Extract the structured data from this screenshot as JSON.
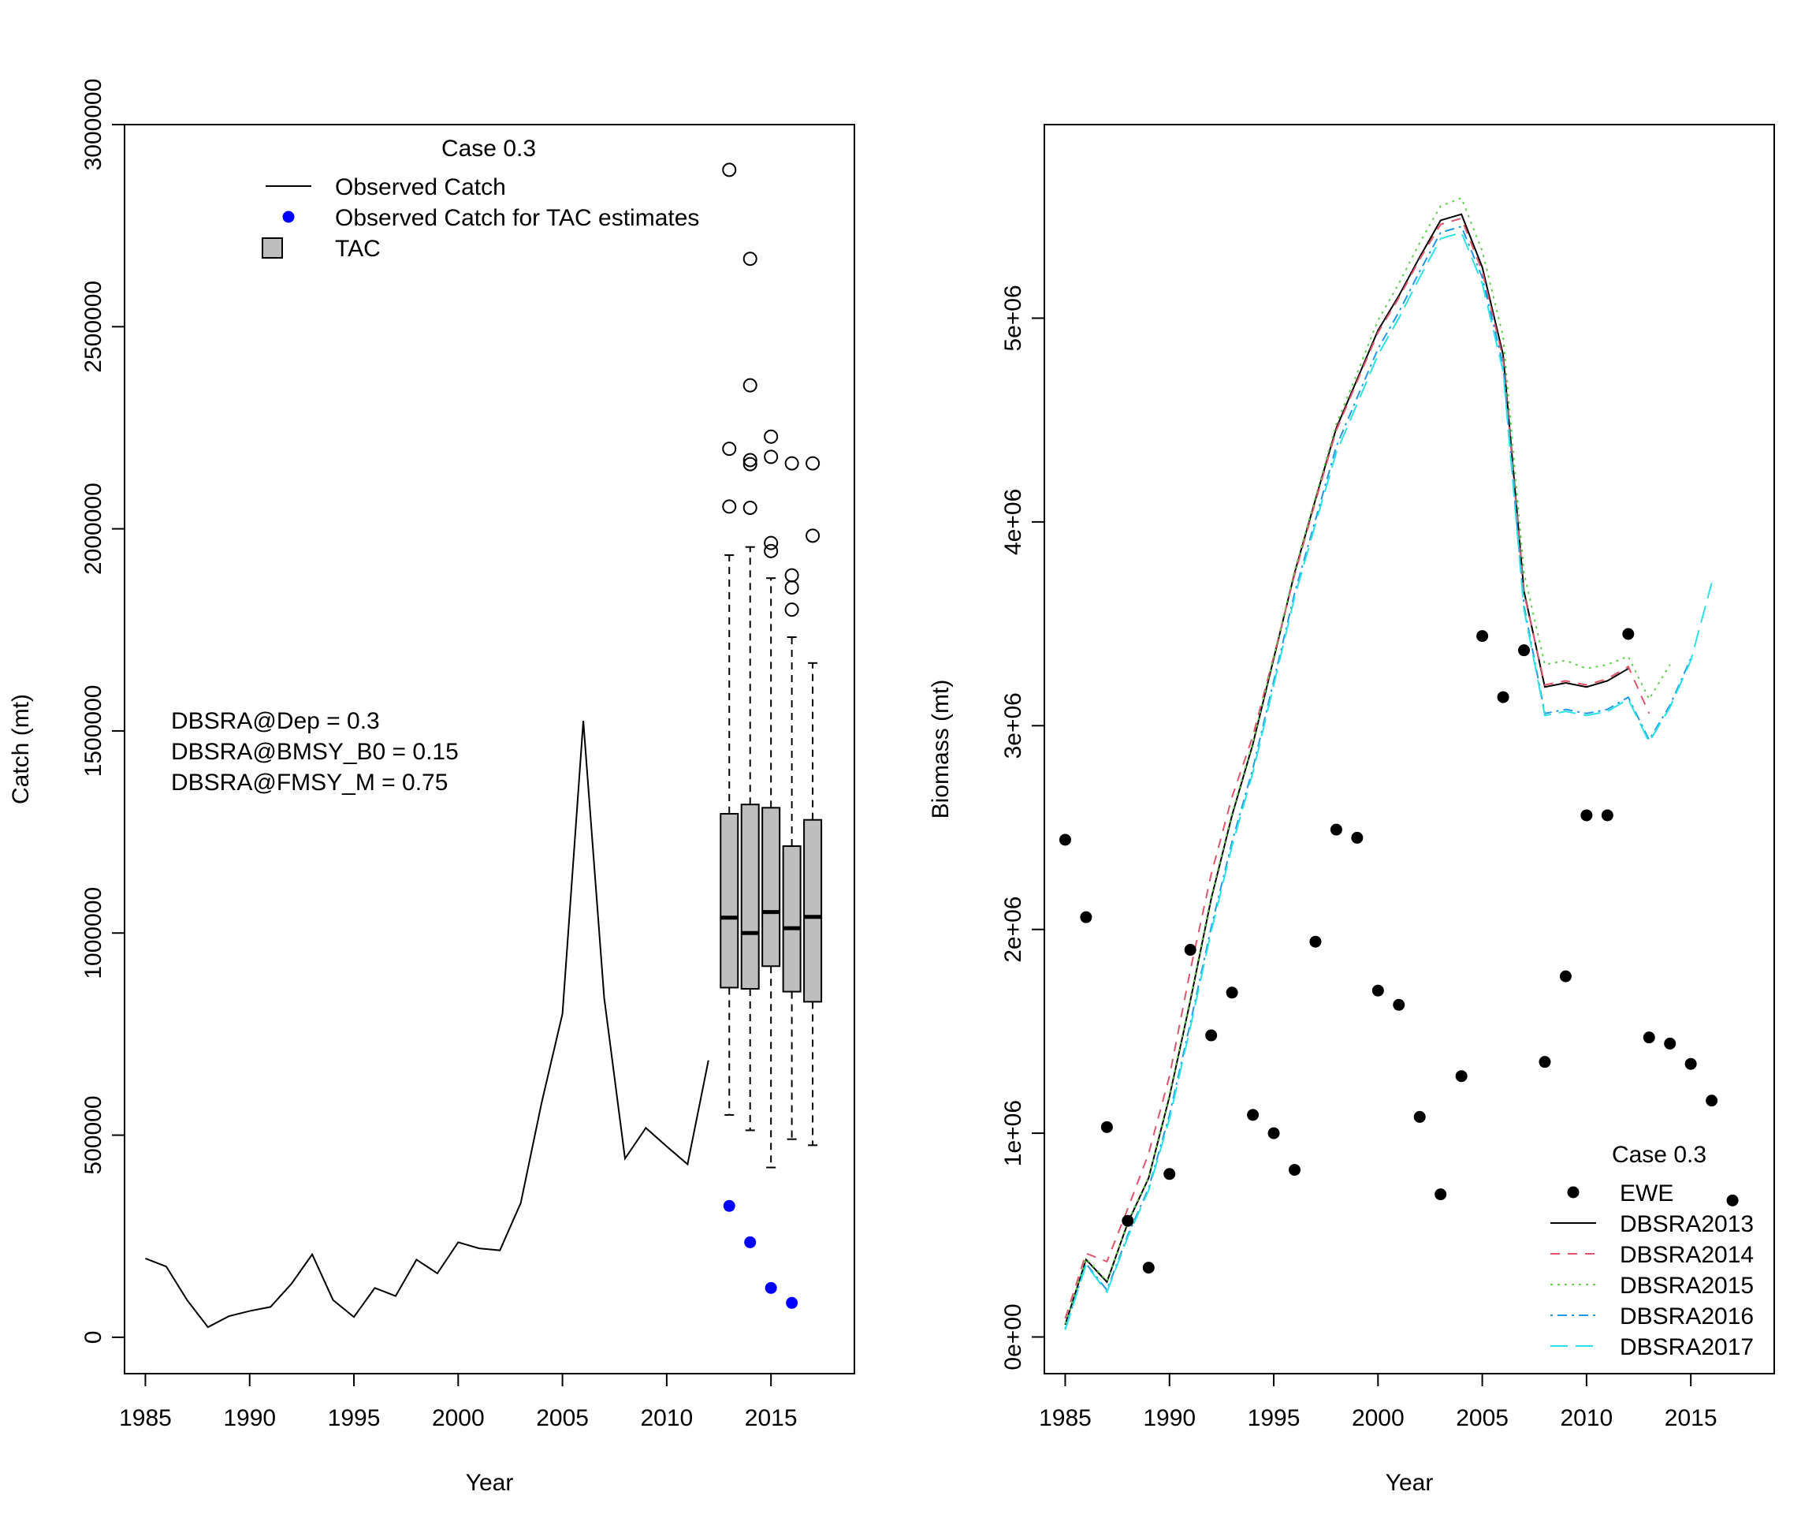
{
  "chart_data": [
    {
      "type": "line+boxplot",
      "xlabel": "Year",
      "ylabel": "Catch (mt)",
      "xlim": [
        1984,
        2019
      ],
      "ylim": [
        -90000,
        3000000
      ],
      "xticks": [
        1985,
        1990,
        1995,
        2000,
        2005,
        2010,
        2015
      ],
      "yticks": [
        0,
        500000,
        1000000,
        1500000,
        2000000,
        2500000,
        3000000
      ],
      "ytick_labels": [
        "0",
        "500000",
        "1000000",
        "1500000",
        "2000000",
        "2500000",
        "3000000"
      ],
      "legend": {
        "title": "Case 0.3",
        "placement": "top",
        "items": [
          {
            "label": "Observed Catch",
            "kind": "line"
          },
          {
            "label": "Observed Catch for TAC estimates",
            "kind": "point",
            "color": "#0000ff"
          },
          {
            "label": "TAC",
            "kind": "box",
            "color": "#bebebe"
          }
        ]
      },
      "annotations": [
        "DBSRA@Dep = 0.3",
        "DBSRA@BMSY_B0 = 0.15",
        "DBSRA@FMSY_M = 0.75"
      ],
      "observed_catch": {
        "x": [
          1985,
          1986,
          1987,
          1988,
          1989,
          1990,
          1991,
          1992,
          1993,
          1994,
          1995,
          1996,
          1997,
          1998,
          1999,
          2000,
          2001,
          2002,
          2003,
          2004,
          2005,
          2006,
          2007,
          2008,
          2009,
          2010,
          2011,
          2012
        ],
        "y": [
          195000,
          175000,
          92000,
          25000,
          52000,
          65000,
          75000,
          132000,
          205000,
          92000,
          50000,
          122000,
          102000,
          192000,
          158000,
          235000,
          220000,
          215000,
          332000,
          580000,
          800000,
          1525000,
          840000,
          442000,
          518000,
          472000,
          428000,
          685000
        ],
        "color": "#000000"
      },
      "tac_catch_points": {
        "x": [
          2013,
          2014,
          2015,
          2016
        ],
        "y": [
          325000,
          235000,
          122000,
          85000
        ],
        "color": "#0000ff"
      },
      "boxes": [
        {
          "x": 2013,
          "q1": 865000,
          "median": 1038000,
          "q3": 1295000,
          "whisker_low": 550000,
          "whisker_high": 1935000,
          "outliers": [
            2055000,
            2198000,
            2888000
          ]
        },
        {
          "x": 2014,
          "q1": 862000,
          "median": 1000000,
          "q3": 1318000,
          "whisker_low": 512000,
          "whisker_high": 1955000,
          "outliers": [
            2052000,
            2160000,
            2170000,
            2355000,
            2668000
          ]
        },
        {
          "x": 2015,
          "q1": 918000,
          "median": 1052000,
          "q3": 1310000,
          "whisker_low": 420000,
          "whisker_high": 1878000,
          "outliers": [
            1945000,
            1965000,
            2178000,
            2228000
          ]
        },
        {
          "x": 2016,
          "q1": 855000,
          "median": 1012000,
          "q3": 1215000,
          "whisker_low": 490000,
          "whisker_high": 1732000,
          "outliers": [
            1800000,
            1855000,
            1885000,
            2162000
          ]
        },
        {
          "x": 2017,
          "q1": 830000,
          "median": 1040000,
          "q3": 1280000,
          "whisker_low": 475000,
          "whisker_high": 1668000,
          "outliers": [
            1983000,
            2162000
          ]
        }
      ],
      "box_color": "#bebebe"
    },
    {
      "type": "line+scatter",
      "xlabel": "Year",
      "ylabel": "Biomass (mt)",
      "xlim": [
        1984,
        2019
      ],
      "ylim": [
        -180000,
        5950000
      ],
      "xticks": [
        1985,
        1990,
        1995,
        2000,
        2005,
        2010,
        2015
      ],
      "yticks": [
        0,
        1000000,
        2000000,
        3000000,
        4000000,
        5000000
      ],
      "ytick_labels": [
        "0e+00",
        "1e+06",
        "2e+06",
        "3e+06",
        "4e+06",
        "5e+06"
      ],
      "legend": {
        "title": "Case 0.3",
        "placement": "bottom-right",
        "items": [
          {
            "label": "EWE",
            "kind": "point",
            "color": "#000000"
          },
          {
            "label": "DBSRA2013",
            "kind": "line",
            "color": "#000000",
            "dash": ""
          },
          {
            "label": "DBSRA2014",
            "kind": "line",
            "color": "#df536b",
            "dash": "12,10"
          },
          {
            "label": "DBSRA2015",
            "kind": "line",
            "color": "#61d04f",
            "dash": "3,6"
          },
          {
            "label": "DBSRA2016",
            "kind": "line",
            "color": "#2297e6",
            "dash": "3,6,12,6"
          },
          {
            "label": "DBSRA2017",
            "kind": "line",
            "color": "#28e2e5",
            "dash": "22,10"
          }
        ]
      },
      "ewe_points": {
        "x": [
          1985,
          1986,
          1987,
          1988,
          1989,
          1990,
          1991,
          1992,
          1993,
          1994,
          1995,
          1996,
          1997,
          1998,
          1999,
          2000,
          2001,
          2002,
          2003,
          2004,
          2005,
          2006,
          2007,
          2008,
          2009,
          2010,
          2011,
          2012,
          2013,
          2014,
          2015,
          2016,
          2017
        ],
        "y": [
          2440000,
          2060000,
          1030000,
          570000,
          340000,
          800000,
          1900000,
          1480000,
          1690000,
          1090000,
          1000000,
          820000,
          1940000,
          2490000,
          2450000,
          1700000,
          1630000,
          1080000,
          700000,
          1280000,
          3440000,
          3140000,
          3370000,
          1350000,
          1770000,
          2560000,
          2560000,
          3450000,
          1470000,
          1440000,
          1340000,
          1160000,
          670000
        ],
        "color": "#000000"
      },
      "series": [
        {
          "name": "DBSRA2013",
          "color": "#000000",
          "dash": "",
          "x": [
            1985,
            1986,
            1987,
            1988,
            1989,
            1990,
            1991,
            1992,
            1993,
            1994,
            1995,
            1996,
            1997,
            1998,
            1999,
            2000,
            2001,
            2002,
            2003,
            2004,
            2005,
            2006,
            2007,
            2008,
            2009,
            2010,
            2011,
            2012
          ],
          "values": [
            60000,
            380000,
            270000,
            560000,
            780000,
            1180000,
            1650000,
            2150000,
            2560000,
            2910000,
            3330000,
            3750000,
            4110000,
            4460000,
            4700000,
            4940000,
            5110000,
            5300000,
            5480000,
            5510000,
            5250000,
            4820000,
            3660000,
            3190000,
            3210000,
            3190000,
            3220000,
            3280000
          ]
        },
        {
          "name": "DBSRA2014",
          "color": "#df536b",
          "dash": "12,10",
          "x": [
            1985,
            1986,
            1987,
            1988,
            1989,
            1990,
            1991,
            1992,
            1993,
            1994,
            1995,
            1996,
            1997,
            1998,
            1999,
            2000,
            2001,
            2002,
            2003,
            2004,
            2005,
            2006,
            2007,
            2008,
            2009,
            2010,
            2011,
            2012,
            2013
          ],
          "values": [
            90000,
            410000,
            370000,
            630000,
            900000,
            1280000,
            1800000,
            2270000,
            2650000,
            2950000,
            3340000,
            3740000,
            4100000,
            4450000,
            4690000,
            4930000,
            5100000,
            5290000,
            5460000,
            5490000,
            5230000,
            4800000,
            3650000,
            3200000,
            3220000,
            3200000,
            3230000,
            3290000,
            3060000
          ]
        },
        {
          "name": "DBSRA2015",
          "color": "#61d04f",
          "dash": "3,6",
          "x": [
            1985,
            1986,
            1987,
            1988,
            1989,
            1990,
            1991,
            1992,
            1993,
            1994,
            1995,
            1996,
            1997,
            1998,
            1999,
            2000,
            2001,
            2002,
            2003,
            2004,
            2005,
            2006,
            2007,
            2008,
            2009,
            2010,
            2011,
            2012,
            2013,
            2014
          ],
          "values": [
            65000,
            385000,
            275000,
            565000,
            785000,
            1190000,
            1660000,
            2160000,
            2570000,
            2920000,
            3340000,
            3760000,
            4120000,
            4480000,
            4730000,
            4990000,
            5170000,
            5370000,
            5550000,
            5590000,
            5330000,
            4910000,
            3750000,
            3300000,
            3320000,
            3280000,
            3300000,
            3340000,
            3130000,
            3300000
          ]
        },
        {
          "name": "DBSRA2016",
          "color": "#2297e6",
          "dash": "3,6,12,6",
          "x": [
            1985,
            1986,
            1987,
            1988,
            1989,
            1990,
            1991,
            1992,
            1993,
            1994,
            1995,
            1996,
            1997,
            1998,
            1999,
            2000,
            2001,
            2002,
            2003,
            2004,
            2005,
            2006,
            2007,
            2008,
            2009,
            2010,
            2011,
            2012,
            2013,
            2014,
            2015
          ],
          "values": [
            40000,
            360000,
            230000,
            500000,
            730000,
            1090000,
            1540000,
            2010000,
            2430000,
            2790000,
            3220000,
            3650000,
            4010000,
            4370000,
            4610000,
            4850000,
            5030000,
            5230000,
            5420000,
            5450000,
            5200000,
            4770000,
            3590000,
            3060000,
            3080000,
            3060000,
            3080000,
            3140000,
            2930000,
            3100000,
            3330000
          ]
        },
        {
          "name": "DBSRA2017",
          "color": "#28e2e5",
          "dash": "22,10",
          "x": [
            1985,
            1986,
            1987,
            1988,
            1989,
            1990,
            1991,
            1992,
            1993,
            1994,
            1995,
            1996,
            1997,
            1998,
            1999,
            2000,
            2001,
            2002,
            2003,
            2004,
            2005,
            2006,
            2007,
            2008,
            2009,
            2010,
            2011,
            2012,
            2013,
            2014,
            2015,
            2016
          ],
          "values": [
            35000,
            355000,
            220000,
            490000,
            720000,
            1070000,
            1520000,
            1990000,
            2410000,
            2770000,
            3200000,
            3630000,
            3990000,
            4340000,
            4580000,
            4820000,
            5000000,
            5200000,
            5390000,
            5420000,
            5170000,
            4740000,
            3570000,
            3050000,
            3070000,
            3050000,
            3070000,
            3130000,
            2920000,
            3090000,
            3320000,
            3700000
          ]
        }
      ]
    }
  ]
}
